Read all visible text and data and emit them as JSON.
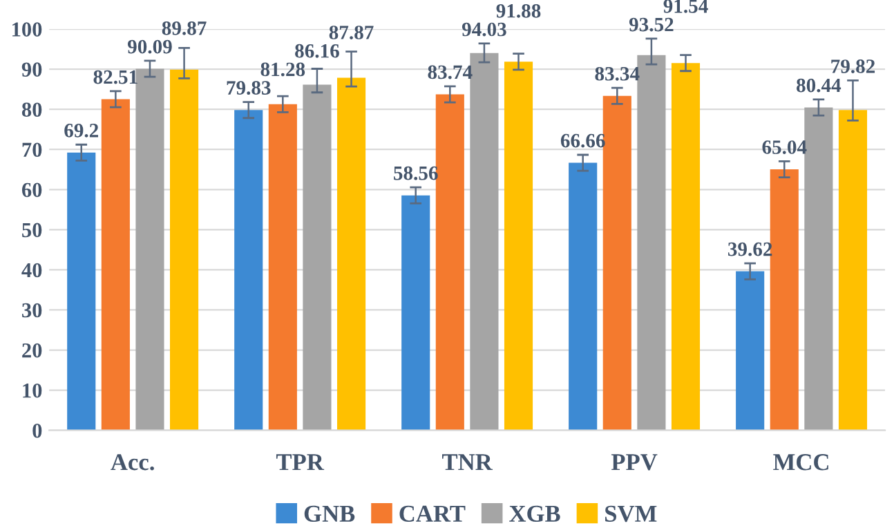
{
  "chart_data": {
    "type": "bar",
    "categories": [
      "Acc.",
      "TPR",
      "TNR",
      "PPV",
      "MCC"
    ],
    "series": [
      {
        "name": "GNB",
        "color": "#3d8ad3",
        "values": [
          69.2,
          79.83,
          58.56,
          66.66,
          39.62
        ],
        "errors": [
          2,
          2,
          2,
          2,
          2
        ]
      },
      {
        "name": "CART",
        "color": "#f47a2e",
        "values": [
          82.51,
          81.28,
          83.74,
          83.34,
          65.04
        ],
        "errors": [
          2,
          2,
          2,
          2,
          2
        ]
      },
      {
        "name": "XGB",
        "color": "#a5a5a5",
        "values": [
          90.09,
          86.16,
          94.03,
          93.52,
          80.44
        ],
        "errors": [
          2,
          [
            84.2,
            90.1
          ],
          [
            91.7,
            96.4
          ],
          [
            91.2,
            97.6
          ],
          2
        ]
      },
      {
        "name": "SVM",
        "color": "#ffc000",
        "values": [
          89.87,
          87.87,
          91.88,
          91.54,
          79.82
        ],
        "errors": [
          [
            87.7,
            95.3
          ],
          [
            85.7,
            94.4
          ],
          2,
          2,
          [
            77.2,
            87.2
          ]
        ]
      }
    ],
    "ylim": [
      0,
      100
    ],
    "yticks": [
      0,
      10,
      20,
      30,
      40,
      50,
      60,
      70,
      80,
      90,
      100
    ],
    "grid": "y",
    "legend": "bottom",
    "data_labels": true
  }
}
